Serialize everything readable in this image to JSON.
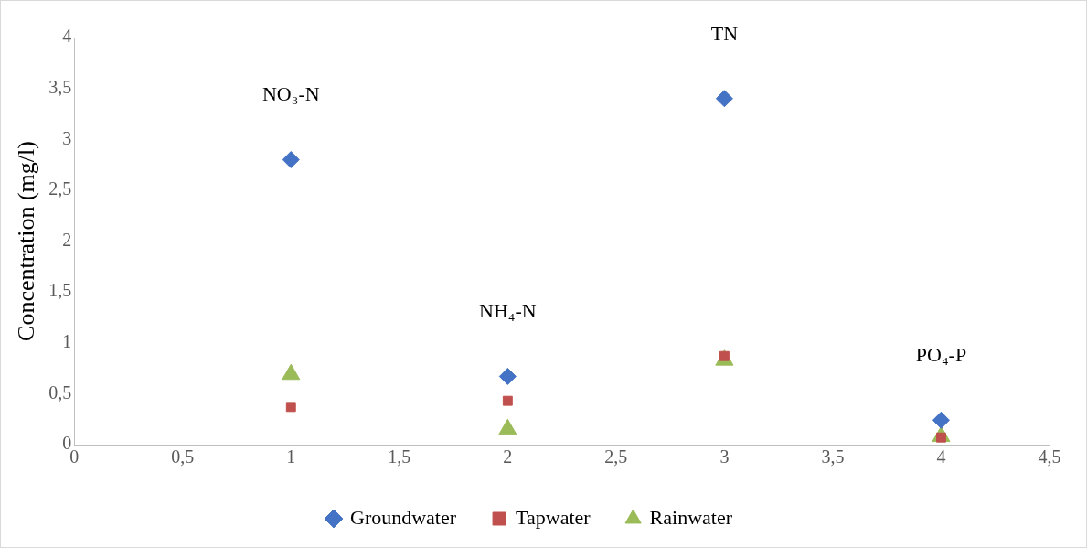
{
  "chart_data": {
    "type": "scatter",
    "ylabel": "Concentration (mg/l)",
    "x": [
      1,
      2,
      3,
      4
    ],
    "series": [
      {
        "name": "Groundwater",
        "color": "#4472c4",
        "marker": "diamond",
        "values": [
          2.8,
          0.67,
          3.4,
          0.24
        ]
      },
      {
        "name": "Tapwater",
        "color": "#c0504d",
        "marker": "square",
        "values": [
          0.37,
          0.43,
          0.87,
          0.07
        ]
      },
      {
        "name": "Rainwater",
        "color": "#9bbb59",
        "marker": "triangle",
        "values": [
          0.69,
          0.15,
          0.83,
          0.08
        ]
      }
    ],
    "xlim": [
      0,
      4.5
    ],
    "xticks": [
      0,
      {
        "value": 0.5,
        "label": "0,5"
      },
      1,
      {
        "value": 1.5,
        "label": "1,5"
      },
      2,
      {
        "value": 2.5,
        "label": "2,5"
      },
      3,
      {
        "value": 3.5,
        "label": "3,5"
      },
      4,
      {
        "value": 4.5,
        "label": "4,5"
      }
    ],
    "ylim": [
      0,
      4
    ],
    "yticks": [
      0,
      {
        "value": 0.5,
        "label": "0,5"
      },
      1,
      {
        "value": 1.5,
        "label": "1,5"
      },
      2,
      {
        "value": 2.5,
        "label": "2,5"
      },
      3,
      {
        "value": 3.5,
        "label": "3,5"
      },
      4
    ],
    "annotations": [
      "NO₃-N",
      "NH₄-N",
      "TN",
      "PO₄-P"
    ],
    "grid": false,
    "legend": "bottom"
  }
}
